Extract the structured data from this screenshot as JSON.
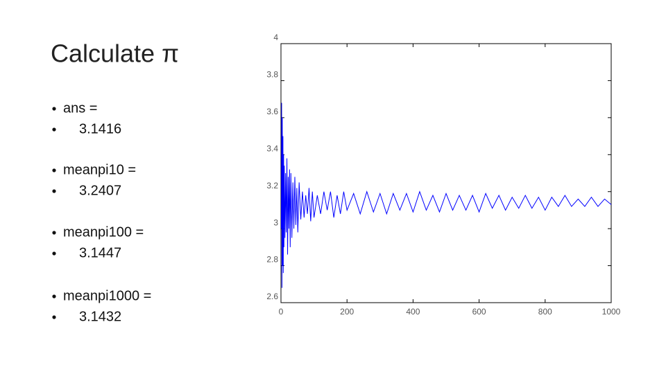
{
  "title": "Calculate π",
  "items": [
    {
      "label": "ans =",
      "value": "3.1416"
    },
    {
      "label": "meanpi10 =",
      "value": "3.2407"
    },
    {
      "label": "meanpi100 =",
      "value": "3.1447"
    },
    {
      "label": "meanpi1000 =",
      "value": "3.1432"
    }
  ],
  "chart_data": {
    "type": "line",
    "color": "#0000ff",
    "x": [
      1,
      2,
      3,
      4,
      5,
      6,
      7,
      8,
      9,
      10,
      12,
      14,
      16,
      18,
      20,
      22,
      24,
      26,
      28,
      30,
      33,
      36,
      39,
      42,
      45,
      48,
      51,
      55,
      60,
      65,
      70,
      75,
      80,
      85,
      90,
      95,
      100,
      110,
      120,
      130,
      140,
      150,
      160,
      170,
      180,
      190,
      200,
      220,
      240,
      260,
      280,
      300,
      320,
      340,
      360,
      380,
      400,
      420,
      440,
      460,
      480,
      500,
      520,
      540,
      560,
      580,
      600,
      620,
      640,
      660,
      680,
      700,
      720,
      740,
      760,
      780,
      800,
      820,
      840,
      860,
      880,
      900,
      920,
      940,
      960,
      980,
      1000
    ],
    "values": [
      3.0,
      3.68,
      2.68,
      3.6,
      2.8,
      3.5,
      2.76,
      3.4,
      2.9,
      3.34,
      2.95,
      3.3,
      2.98,
      3.38,
      2.86,
      3.28,
      3.0,
      3.32,
      2.9,
      3.3,
      2.95,
      3.25,
      3.0,
      3.28,
      3.02,
      3.22,
      2.98,
      3.25,
      3.05,
      3.2,
      3.06,
      3.18,
      3.08,
      3.22,
      3.04,
      3.2,
      3.06,
      3.18,
      3.08,
      3.2,
      3.1,
      3.2,
      3.06,
      3.18,
      3.08,
      3.2,
      3.1,
      3.19,
      3.08,
      3.2,
      3.09,
      3.19,
      3.08,
      3.19,
      3.1,
      3.19,
      3.09,
      3.2,
      3.1,
      3.18,
      3.09,
      3.19,
      3.1,
      3.18,
      3.1,
      3.18,
      3.09,
      3.19,
      3.11,
      3.18,
      3.1,
      3.17,
      3.11,
      3.18,
      3.11,
      3.17,
      3.1,
      3.17,
      3.12,
      3.18,
      3.12,
      3.16,
      3.12,
      3.17,
      3.12,
      3.16,
      3.13
    ],
    "xlim": [
      0,
      1000
    ],
    "xticks": [
      0,
      200,
      400,
      600,
      800,
      1000
    ],
    "ylim": [
      2.6,
      4
    ],
    "yticks": [
      2.6,
      2.8,
      3,
      3.2,
      3.4,
      3.6,
      3.8,
      4
    ]
  }
}
